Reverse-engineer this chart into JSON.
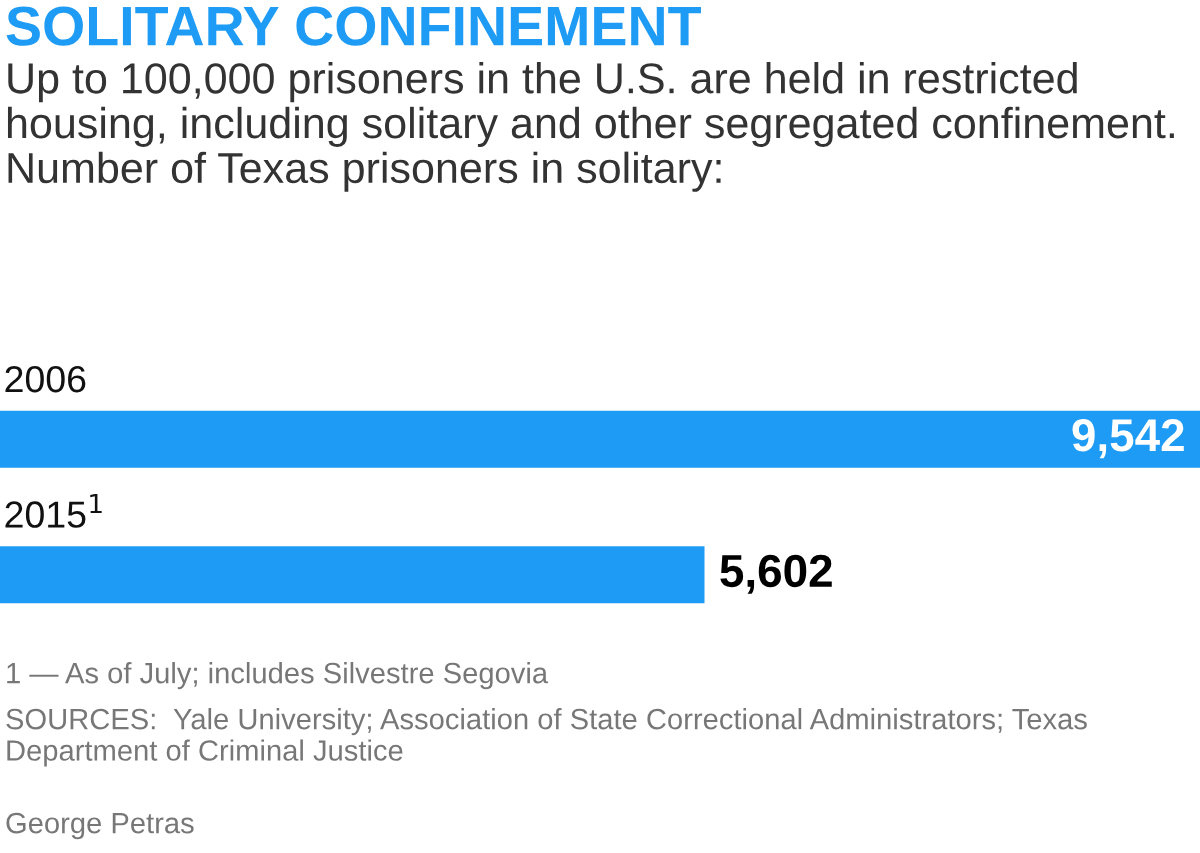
{
  "chart_data": {
    "type": "bar",
    "orientation": "horizontal",
    "title": "SOLITARY CONFINEMENT",
    "subtitle": "Up to 100,000 prisoners in the U.S. are held in restricted housing, including solitary and other segregated confinement. Number of Texas prisoners in solitary:",
    "categories": [
      "2006",
      "2015$^{1}$"
    ],
    "values": [
      9542,
      5602
    ],
    "value_labels": [
      "9,542",
      "5,602"
    ],
    "color": "#1e9bf5",
    "annotations": [
      "1 — As of July; includes Silvestre Segovia",
      "SOURCES:  Yale University; Association of State Correctional Administrators; Texas Department of Criminal Justice",
      "George Petras"
    ]
  }
}
